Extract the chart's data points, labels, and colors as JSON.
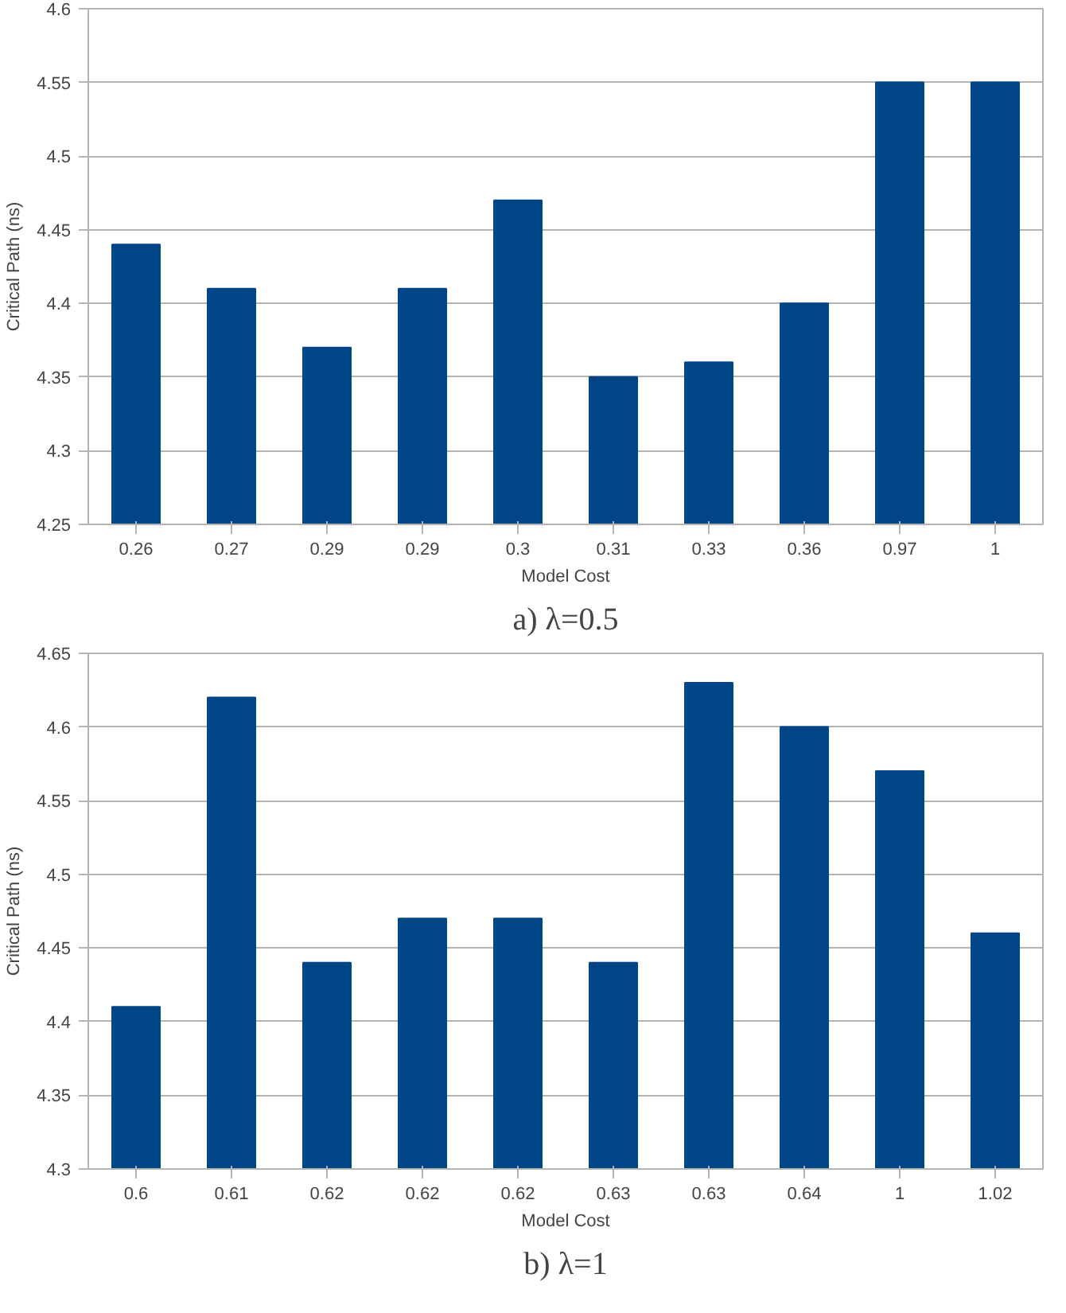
{
  "chart_data": [
    {
      "type": "bar",
      "xlabel": "Model Cost",
      "ylabel": "Critical Path (ns)",
      "categories": [
        "0.26",
        "0.27",
        "0.29",
        "0.29",
        "0.3",
        "0.31",
        "0.33",
        "0.36",
        "0.97",
        "1"
      ],
      "values": [
        4.44,
        4.41,
        4.37,
        4.41,
        4.47,
        4.35,
        4.36,
        4.4,
        4.55,
        4.55
      ],
      "color": "#004586",
      "ylim": [
        4.25,
        4.6
      ],
      "yticks": [
        4.25,
        4.3,
        4.35,
        4.4,
        4.45,
        4.5,
        4.55,
        4.6
      ],
      "grid": "y",
      "annotations": [
        "a) λ=0.5"
      ]
    },
    {
      "type": "bar",
      "xlabel": "Model Cost",
      "ylabel": "Critical Path (ns)",
      "categories": [
        "0.6",
        "0.61",
        "0.62",
        "0.62",
        "0.62",
        "0.63",
        "0.63",
        "0.64",
        "1",
        "1.02"
      ],
      "values": [
        4.41,
        4.62,
        4.44,
        4.47,
        4.47,
        4.44,
        4.63,
        4.6,
        4.57,
        4.46
      ],
      "color": "#004586",
      "ylim": [
        4.3,
        4.65
      ],
      "yticks": [
        4.3,
        4.35,
        4.4,
        4.45,
        4.5,
        4.55,
        4.6,
        4.65
      ],
      "grid": "y",
      "annotations": [
        "b) λ=1"
      ]
    }
  ]
}
